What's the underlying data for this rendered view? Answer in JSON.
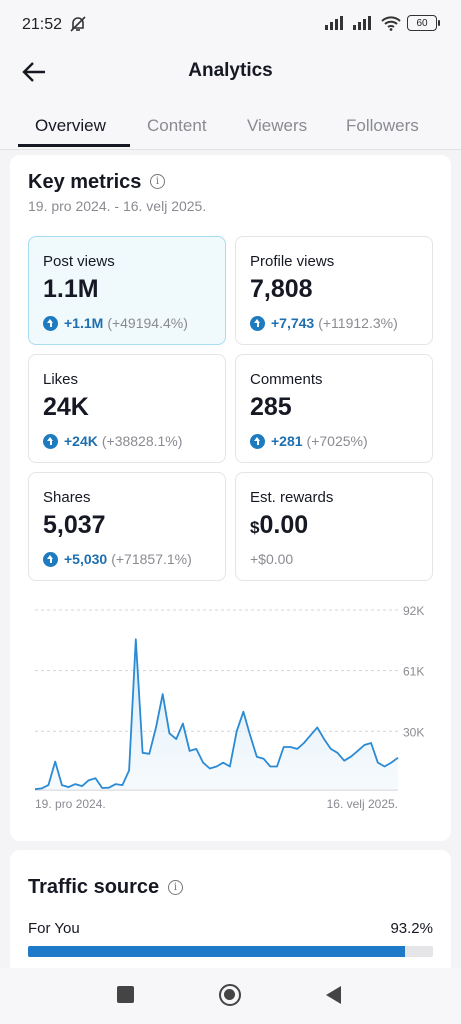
{
  "status": {
    "time": "21:52",
    "battery": "60"
  },
  "header": {
    "title": "Analytics"
  },
  "tabs": [
    {
      "label": "Overview",
      "active": true
    },
    {
      "label": "Content"
    },
    {
      "label": "Viewers"
    },
    {
      "label": "Followers"
    }
  ],
  "key_metrics": {
    "title": "Key metrics",
    "date_range": "19. pro 2024. - 16. velj 2025.",
    "metrics": [
      {
        "label": "Post views",
        "value": "1.1M",
        "delta": "+1.1M",
        "delta_pct": "(+49194.4%)"
      },
      {
        "label": "Profile views",
        "value": "7,808",
        "delta": "+7,743",
        "delta_pct": "(+11912.3%)"
      },
      {
        "label": "Likes",
        "value": "24K",
        "delta": "+24K",
        "delta_pct": "(+38828.1%)"
      },
      {
        "label": "Comments",
        "value": "285",
        "delta": "+281",
        "delta_pct": "(+7025%)"
      },
      {
        "label": "Shares",
        "value": "5,037",
        "delta": "+5,030",
        "delta_pct": "(+71857.1%)"
      },
      {
        "label": "Est. rewards",
        "currency": "$",
        "value": "0.00",
        "delta": "+$0.00"
      }
    ]
  },
  "chart_data": {
    "type": "area",
    "x_start_label": "19. pro 2024.",
    "x_end_label": "16. velj 2025.",
    "y_ticks": [
      {
        "value": 30000,
        "label": "30K"
      },
      {
        "value": 61000,
        "label": "61K"
      },
      {
        "value": 92000,
        "label": "92K"
      }
    ],
    "ylim": [
      0,
      92000
    ],
    "series": [
      {
        "color": "#2a8ad4",
        "values": [
          400,
          800,
          2500,
          14500,
          2500,
          1500,
          3000,
          2000,
          5000,
          6000,
          1000,
          1200,
          3000,
          2500,
          10000,
          77000,
          19000,
          18500,
          32000,
          49000,
          29000,
          26000,
          34000,
          20000,
          21000,
          14000,
          11000,
          12000,
          14000,
          12000,
          30000,
          40000,
          28000,
          17000,
          16000,
          12000,
          12000,
          22000,
          22000,
          21000,
          24000,
          28000,
          32000,
          26000,
          21000,
          19000,
          15000,
          17000,
          20000,
          23000,
          24000,
          14000,
          12000,
          14000,
          16500
        ]
      }
    ]
  },
  "traffic": {
    "title": "Traffic source",
    "rows": [
      {
        "label": "For You",
        "value": "93.2%",
        "fraction": 0.932
      }
    ]
  },
  "colors": {
    "accent": "#1e79c9",
    "selected_bg": "#f0f9fc",
    "delta": "#1e6fb0"
  },
  "icons": [
    "mute-icon",
    "signal-icon",
    "wifi-icon",
    "battery-icon",
    "back-arrow-icon",
    "info-icon",
    "arrow-up-circle-icon",
    "recent-apps-icon",
    "home-icon",
    "back-triangle-icon"
  ]
}
